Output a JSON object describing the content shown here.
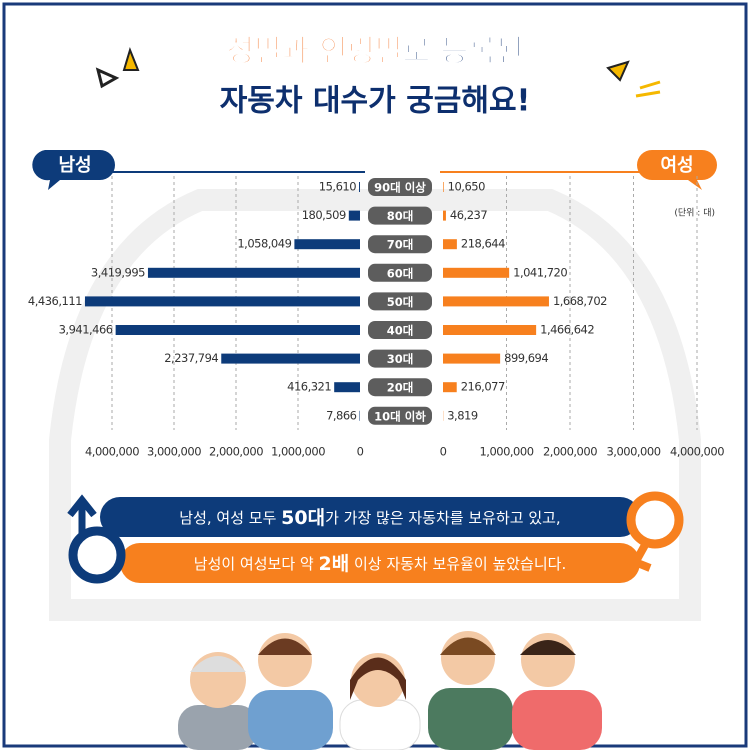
{
  "chart_data": {
    "type": "butterfly",
    "title": [
      "성별과 연령별",
      "로 등록된",
      "자동차 대수가 궁금해요!"
    ],
    "unit": "(단위 : 대)",
    "categories": [
      "90대 이상",
      "80대",
      "70대",
      "60대",
      "50대",
      "40대",
      "30대",
      "20대",
      "10대 이하"
    ],
    "series": [
      {
        "name": "남성",
        "color": "#0d3b7a",
        "values": [
          15610,
          180509,
          1058049,
          3419995,
          4436111,
          3941466,
          2237794,
          416321,
          7866
        ],
        "value_labels": [
          "15,610",
          "180,509",
          "1,058,049",
          "3,419,995",
          "4,436,111",
          "3,941,466",
          "2,237,794",
          "416,321",
          "7,866"
        ]
      },
      {
        "name": "여성",
        "color": "#f7801e",
        "values": [
          10650,
          46237,
          218644,
          1041720,
          1668702,
          1466642,
          899694,
          216077,
          3819
        ],
        "value_labels": [
          "10,650",
          "46,237",
          "218,644",
          "1,041,720",
          "1,668,702",
          "1,466,642",
          "899,694",
          "216,077",
          "3,819"
        ]
      }
    ],
    "xlim": [
      0,
      4000000
    ],
    "xticks": [
      0,
      {
        "value": 1000000,
        "label": "1,000,000"
      },
      {
        "value": 2000000,
        "label": "2,000,000"
      },
      {
        "value": 3000000,
        "label": "3,000,000"
      },
      {
        "value": 4000000,
        "label": "4,000,000"
      }
    ],
    "grid": true,
    "summary": [
      [
        "남성, 여성 모두 ",
        "50대",
        "가 가장 많은 자동차를 보유하고 있고,"
      ],
      [
        "남성이 여성보다 약 ",
        "2배",
        " 이상 자동차 보유율이 높았습니다."
      ]
    ]
  }
}
